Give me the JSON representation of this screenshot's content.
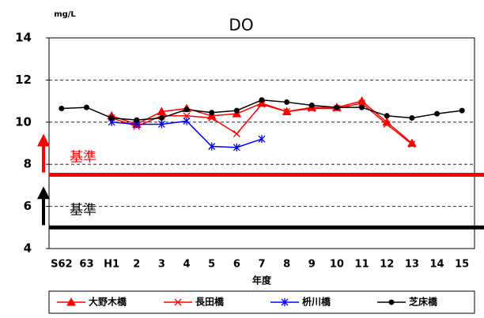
{
  "chart_data": {
    "type": "line",
    "title": "DO",
    "unit_label": "mg/L",
    "x_label": "年度",
    "categories": [
      "S62",
      "63",
      "H1",
      "2",
      "3",
      "4",
      "5",
      "6",
      "7",
      "8",
      "9",
      "10",
      "11",
      "12",
      "13",
      "14",
      "15"
    ],
    "ylim": [
      4,
      14
    ],
    "yticks": [
      4,
      6,
      8,
      10,
      12,
      14
    ],
    "grid": true,
    "series": [
      {
        "name": "大野木橋",
        "color": "#ff0000",
        "marker": "triangle",
        "values": [
          null,
          null,
          10.3,
          9.9,
          10.5,
          10.65,
          10.3,
          10.4,
          10.9,
          10.5,
          10.7,
          10.7,
          11.0,
          10.0,
          9.0,
          null,
          null
        ]
      },
      {
        "name": "長田橋",
        "color": "#ff0000",
        "marker": "x",
        "values": [
          null,
          null,
          10.2,
          9.8,
          10.3,
          10.3,
          10.2,
          9.45,
          10.85,
          10.5,
          10.65,
          10.65,
          10.9,
          9.9,
          8.95,
          null,
          null
        ]
      },
      {
        "name": "枡川橋",
        "color": "#0000ff",
        "marker": "star",
        "values": [
          null,
          null,
          10.0,
          9.9,
          9.9,
          10.05,
          8.85,
          8.8,
          9.2,
          null,
          null,
          null,
          null,
          null,
          null,
          null,
          null
        ]
      },
      {
        "name": "芝床橋",
        "color": "#000000",
        "marker": "circle",
        "values": [
          10.65,
          10.7,
          10.2,
          10.1,
          10.2,
          10.6,
          10.45,
          10.55,
          11.05,
          10.95,
          10.8,
          10.7,
          10.7,
          10.3,
          10.2,
          10.4,
          10.55
        ]
      }
    ],
    "reference_lines": [
      {
        "value": 7.5,
        "label": "基準",
        "color": "#ff0000"
      },
      {
        "value": 5,
        "label": "基準",
        "color": "#000000"
      }
    ]
  }
}
